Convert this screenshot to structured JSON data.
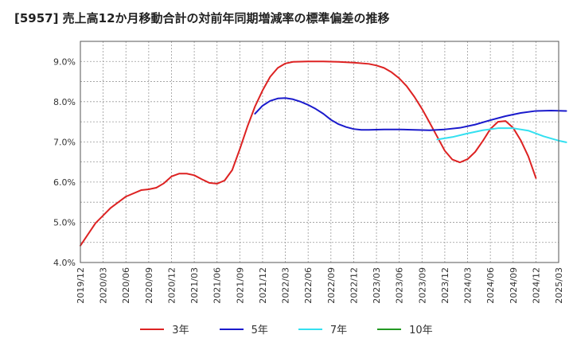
{
  "chart_data": {
    "type": "line",
    "title": "[5957]  売上高12か月移動合計の対前年同期増減率の標準偏差の推移",
    "xlabel": "",
    "ylabel": "",
    "ylim": [
      4.0,
      9.5
    ],
    "yticks": [
      "4.0%",
      "5.0%",
      "6.0%",
      "7.0%",
      "8.0%",
      "9.0%"
    ],
    "ytick_values": [
      4.0,
      5.0,
      6.0,
      7.0,
      8.0,
      9.0
    ],
    "xticks": [
      "2019/12",
      "2020/03",
      "2020/06",
      "2020/09",
      "2020/12",
      "2021/03",
      "2021/06",
      "2021/09",
      "2021/12",
      "2022/03",
      "2022/06",
      "2022/09",
      "2022/12",
      "2023/03",
      "2023/06",
      "2023/09",
      "2023/12",
      "2024/03",
      "2024/06",
      "2024/09",
      "2024/12",
      "2025/03"
    ],
    "legend_position": "bottom",
    "grid": true,
    "series": [
      {
        "name": "3年",
        "color": "#dd2222",
        "points": [
          [
            0,
            4.42
          ],
          [
            2,
            4.98
          ],
          [
            4,
            5.36
          ],
          [
            6,
            5.64
          ],
          [
            8,
            5.8
          ],
          [
            9,
            5.82
          ],
          [
            10,
            5.86
          ],
          [
            11,
            5.97
          ],
          [
            12,
            6.14
          ],
          [
            13,
            6.21
          ],
          [
            14,
            6.21
          ],
          [
            15,
            6.17
          ],
          [
            16,
            6.07
          ],
          [
            17,
            5.98
          ],
          [
            18,
            5.96
          ],
          [
            19,
            6.04
          ],
          [
            20,
            6.3
          ],
          [
            21,
            6.82
          ],
          [
            22,
            7.38
          ],
          [
            23,
            7.88
          ],
          [
            24,
            8.28
          ],
          [
            25,
            8.62
          ],
          [
            26,
            8.84
          ],
          [
            27,
            8.95
          ],
          [
            28,
            8.99
          ],
          [
            30,
            9.0
          ],
          [
            32,
            9.0
          ],
          [
            34,
            8.99
          ],
          [
            36,
            8.97
          ],
          [
            38,
            8.94
          ],
          [
            39,
            8.9
          ],
          [
            40,
            8.84
          ],
          [
            41,
            8.73
          ],
          [
            42,
            8.58
          ],
          [
            43,
            8.38
          ],
          [
            44,
            8.12
          ],
          [
            45,
            7.82
          ],
          [
            46,
            7.48
          ],
          [
            47,
            7.13
          ],
          [
            48,
            6.78
          ],
          [
            49,
            6.56
          ],
          [
            50,
            6.49
          ],
          [
            51,
            6.57
          ],
          [
            52,
            6.75
          ],
          [
            53,
            7.02
          ],
          [
            54,
            7.32
          ],
          [
            55,
            7.5
          ],
          [
            56,
            7.52
          ],
          [
            57,
            7.35
          ],
          [
            58,
            7.04
          ],
          [
            59,
            6.64
          ],
          [
            60,
            6.1
          ]
        ]
      },
      {
        "name": "5年",
        "color": "#1a1acc",
        "points": [
          [
            23,
            7.7
          ],
          [
            24,
            7.9
          ],
          [
            25,
            8.02
          ],
          [
            26,
            8.08
          ],
          [
            27,
            8.09
          ],
          [
            28,
            8.06
          ],
          [
            29,
            8.0
          ],
          [
            30,
            7.92
          ],
          [
            31,
            7.82
          ],
          [
            32,
            7.7
          ],
          [
            33,
            7.55
          ],
          [
            34,
            7.44
          ],
          [
            35,
            7.37
          ],
          [
            36,
            7.32
          ],
          [
            37,
            7.3
          ],
          [
            38,
            7.3
          ],
          [
            40,
            7.31
          ],
          [
            42,
            7.31
          ],
          [
            44,
            7.3
          ],
          [
            46,
            7.29
          ],
          [
            48,
            7.31
          ],
          [
            50,
            7.35
          ],
          [
            52,
            7.43
          ],
          [
            54,
            7.54
          ],
          [
            56,
            7.64
          ],
          [
            58,
            7.72
          ],
          [
            60,
            7.77
          ],
          [
            62,
            7.78
          ],
          [
            64,
            7.77
          ]
        ]
      },
      {
        "name": "7年",
        "color": "#33e0f0",
        "points": [
          [
            47,
            7.06
          ],
          [
            49,
            7.12
          ],
          [
            51,
            7.21
          ],
          [
            53,
            7.29
          ],
          [
            55,
            7.34
          ],
          [
            57,
            7.34
          ],
          [
            59,
            7.28
          ],
          [
            61,
            7.14
          ],
          [
            63,
            7.03
          ],
          [
            64,
            6.99
          ]
        ]
      },
      {
        "name": "10年",
        "color": "#229922",
        "points": []
      }
    ]
  }
}
